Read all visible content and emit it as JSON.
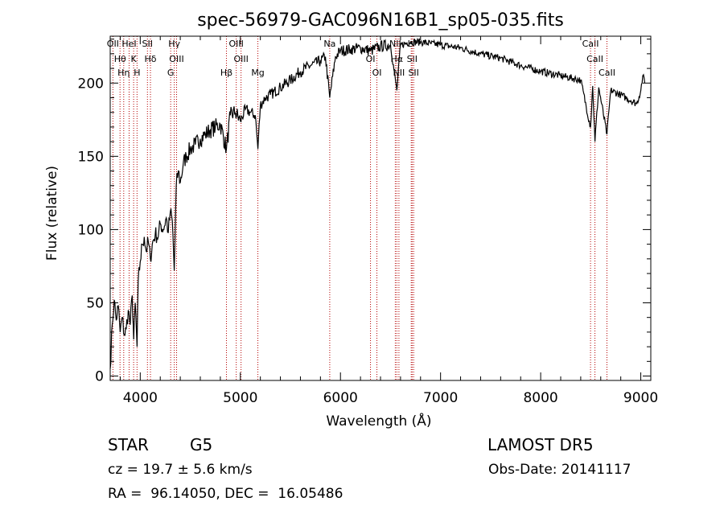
{
  "chart_data": {
    "type": "line",
    "title": "spec-56979-GAC096N16B1_sp05-035.fits",
    "xlabel": "Wavelength (Å)",
    "ylabel": "Flux (relative)",
    "xlim": [
      3700,
      9100
    ],
    "ylim": [
      -3,
      232
    ],
    "x_ticks": [
      4000,
      5000,
      6000,
      7000,
      8000,
      9000
    ],
    "y_ticks": [
      0,
      50,
      100,
      150,
      200
    ],
    "series": [
      {
        "color": "#000000",
        "points": [
          [
            3700,
            5
          ],
          [
            3720,
            35
          ],
          [
            3740,
            52
          ],
          [
            3760,
            38
          ],
          [
            3780,
            48
          ],
          [
            3800,
            30
          ],
          [
            3820,
            40
          ],
          [
            3840,
            28
          ],
          [
            3860,
            32
          ],
          [
            3880,
            45
          ],
          [
            3900,
            35
          ],
          [
            3920,
            55
          ],
          [
            3935,
            25
          ],
          [
            3950,
            50
          ],
          [
            3968,
            20
          ],
          [
            3980,
            65
          ],
          [
            4000,
            78
          ],
          [
            4020,
            90
          ],
          [
            4040,
            95
          ],
          [
            4060,
            85
          ],
          [
            4080,
            92
          ],
          [
            4101,
            80
          ],
          [
            4120,
            90
          ],
          [
            4150,
            97
          ],
          [
            4180,
            95
          ],
          [
            4200,
            104
          ],
          [
            4230,
            100
          ],
          [
            4260,
            108
          ],
          [
            4280,
            98
          ],
          [
            4300,
            112
          ],
          [
            4320,
            106
          ],
          [
            4340,
            72
          ],
          [
            4360,
            130
          ],
          [
            4380,
            140
          ],
          [
            4400,
            132
          ],
          [
            4430,
            145
          ],
          [
            4460,
            150
          ],
          [
            4500,
            155
          ],
          [
            4550,
            158
          ],
          [
            4600,
            162
          ],
          [
            4650,
            165
          ],
          [
            4700,
            168
          ],
          [
            4750,
            170
          ],
          [
            4800,
            172
          ],
          [
            4861,
            155
          ],
          [
            4900,
            178
          ],
          [
            4950,
            180
          ],
          [
            5000,
            174
          ],
          [
            5050,
            182
          ],
          [
            5100,
            180
          ],
          [
            5150,
            178
          ],
          [
            5175,
            155
          ],
          [
            5200,
            185
          ],
          [
            5250,
            190
          ],
          [
            5300,
            192
          ],
          [
            5400,
            197
          ],
          [
            5500,
            202
          ],
          [
            5600,
            208
          ],
          [
            5700,
            212
          ],
          [
            5800,
            215
          ],
          [
            5850,
            218
          ],
          [
            5893,
            190
          ],
          [
            5950,
            218
          ],
          [
            6000,
            222
          ],
          [
            6100,
            223
          ],
          [
            6200,
            224
          ],
          [
            6300,
            222
          ],
          [
            6400,
            225
          ],
          [
            6500,
            226
          ],
          [
            6563,
            195
          ],
          [
            6600,
            226
          ],
          [
            6700,
            228
          ],
          [
            6800,
            228
          ],
          [
            6900,
            227
          ],
          [
            7000,
            226
          ],
          [
            7200,
            224
          ],
          [
            7400,
            220
          ],
          [
            7600,
            217
          ],
          [
            7800,
            212
          ],
          [
            8000,
            208
          ],
          [
            8200,
            205
          ],
          [
            8400,
            202
          ],
          [
            8498,
            170
          ],
          [
            8520,
            198
          ],
          [
            8542,
            160
          ],
          [
            8580,
            197
          ],
          [
            8662,
            165
          ],
          [
            8700,
            195
          ],
          [
            8800,
            192
          ],
          [
            8900,
            188
          ],
          [
            8960,
            186
          ],
          [
            9000,
            195
          ],
          [
            9020,
            205
          ],
          [
            9040,
            200
          ]
        ]
      }
    ],
    "line_markers": [
      {
        "wavelength": 3727,
        "label": "OII"
      },
      {
        "wavelength": 3798,
        "label": "Hθ"
      },
      {
        "wavelength": 3835,
        "label": "Hη"
      },
      {
        "wavelength": 3889,
        "label": "HeI"
      },
      {
        "wavelength": 3934,
        "label": "K"
      },
      {
        "wavelength": 3968,
        "label": "H"
      },
      {
        "wavelength": 4072,
        "label": "SII"
      },
      {
        "wavelength": 4102,
        "label": "Hδ"
      },
      {
        "wavelength": 4304,
        "label": "G"
      },
      {
        "wavelength": 4340,
        "label": "Hγ"
      },
      {
        "wavelength": 4363,
        "label": "OIII"
      },
      {
        "wavelength": 4861,
        "label": "Hβ"
      },
      {
        "wavelength": 4959,
        "label": "OIII"
      },
      {
        "wavelength": 5007,
        "label": "OIII"
      },
      {
        "wavelength": 5175,
        "label": "Mg"
      },
      {
        "wavelength": 5893,
        "label": "Na"
      },
      {
        "wavelength": 6300,
        "label": "OI"
      },
      {
        "wavelength": 6364,
        "label": "OI"
      },
      {
        "wavelength": 6548,
        "label": "NII"
      },
      {
        "wavelength": 6563,
        "label": "Hα"
      },
      {
        "wavelength": 6584,
        "label": "NII"
      },
      {
        "wavelength": 6707,
        "label": "Li"
      },
      {
        "wavelength": 6716,
        "label": "SII"
      },
      {
        "wavelength": 6731,
        "label": "SII"
      },
      {
        "wavelength": 8498,
        "label": "CaII"
      },
      {
        "wavelength": 8542,
        "label": "CaII"
      },
      {
        "wavelength": 8662,
        "label": "CaII"
      }
    ],
    "grid": false
  },
  "info": {
    "object_class": "STAR",
    "subclass": "G5",
    "survey": "LAMOST DR5",
    "redshift_text": "cz = 19.7 ± 5.6 km/s",
    "obs_date_text": "Obs-Date: 20141117",
    "coords_text": "RA =  96.14050, DEC =  16.05486"
  }
}
